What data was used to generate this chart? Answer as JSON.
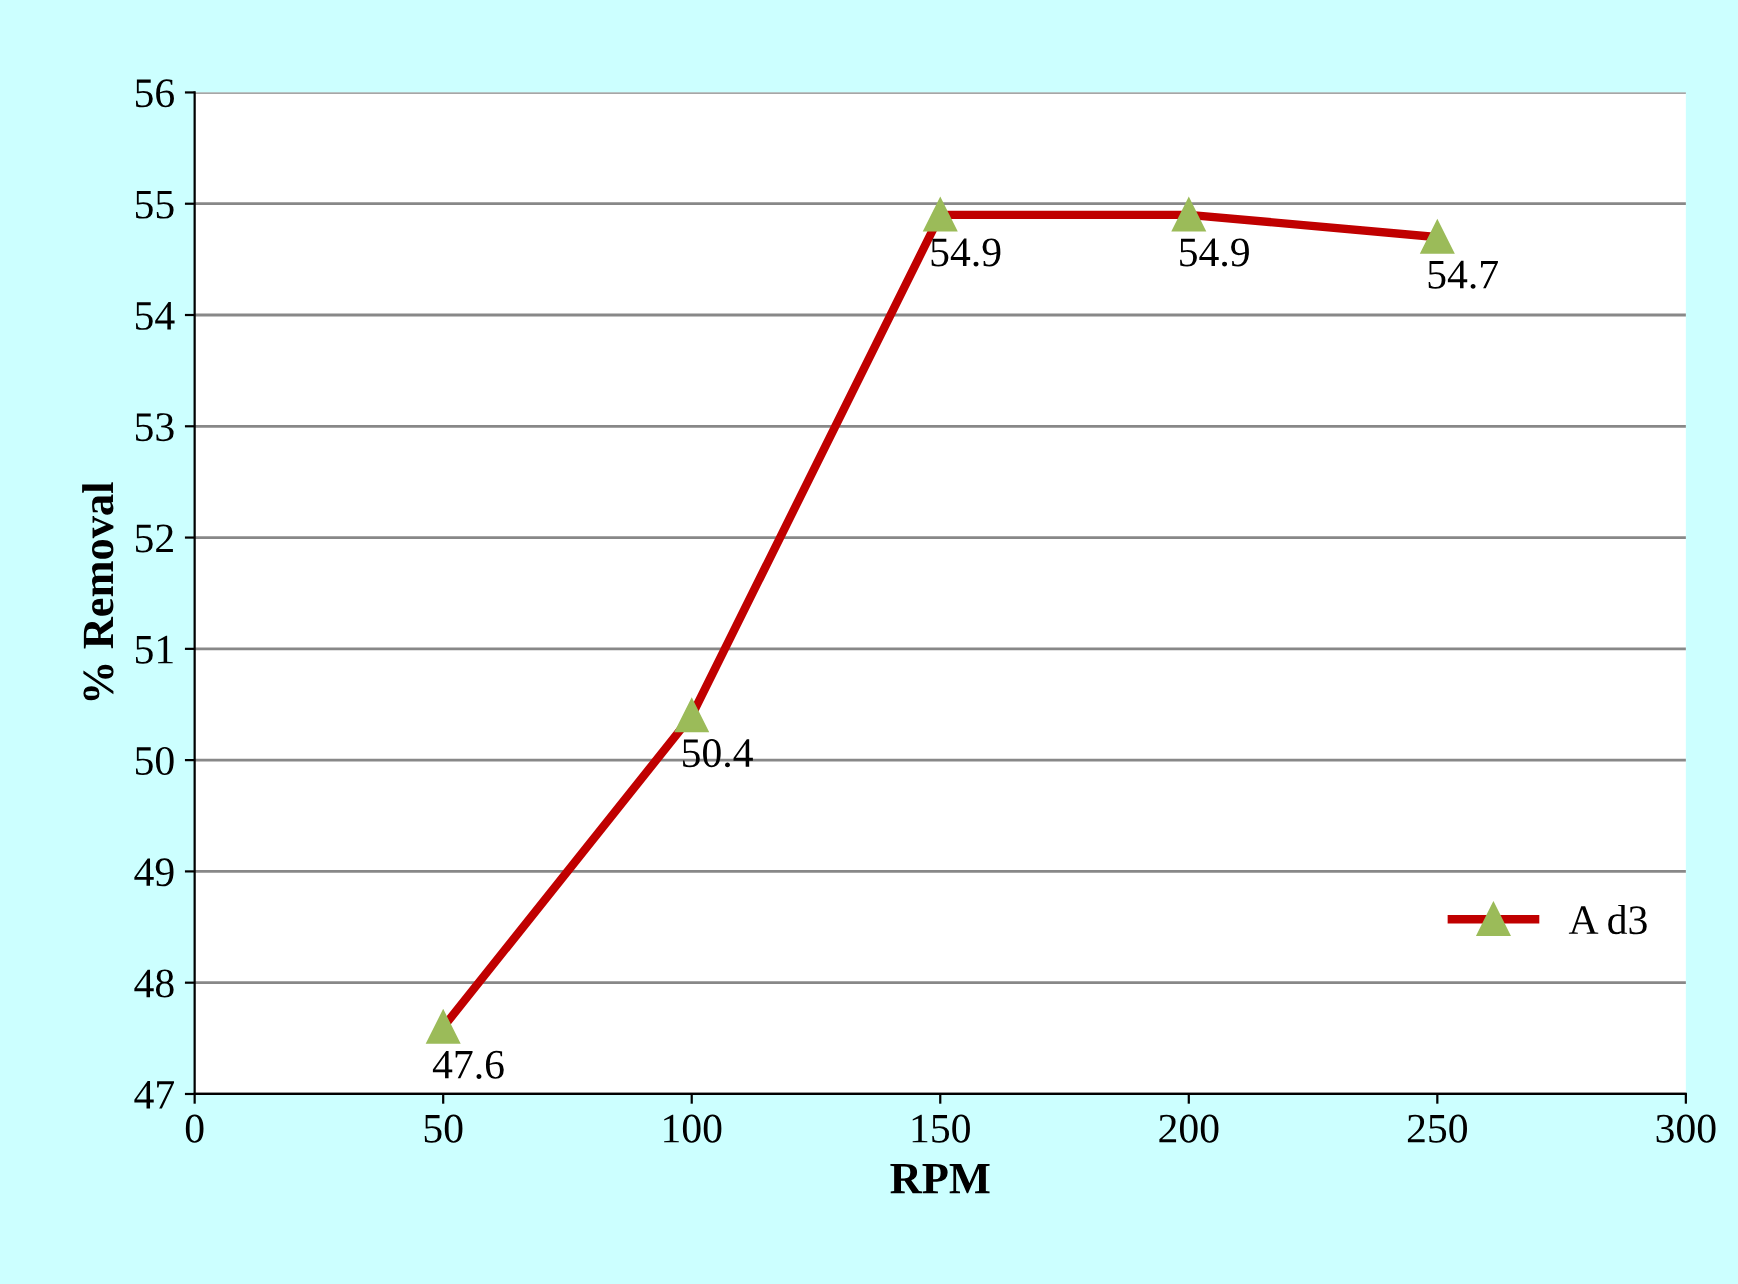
{
  "chart_data": {
    "type": "line",
    "xlabel": "RPM",
    "ylabel": "% Removal",
    "x": [
      50,
      100,
      150,
      200,
      250
    ],
    "series": [
      {
        "name": "A d3",
        "color": "#c00000",
        "values": [
          47.6,
          50.4,
          54.9,
          54.9,
          54.7
        ]
      }
    ],
    "xlim": [
      0,
      300
    ],
    "xticks": [
      0,
      50,
      100,
      150,
      200,
      250,
      300
    ],
    "ylim": [
      47,
      56
    ],
    "yticks": [
      47,
      48,
      49,
      50,
      51,
      52,
      53,
      54,
      55,
      56
    ],
    "grid": "y",
    "legend": "right",
    "marker": "triangle",
    "data_labels": true
  }
}
